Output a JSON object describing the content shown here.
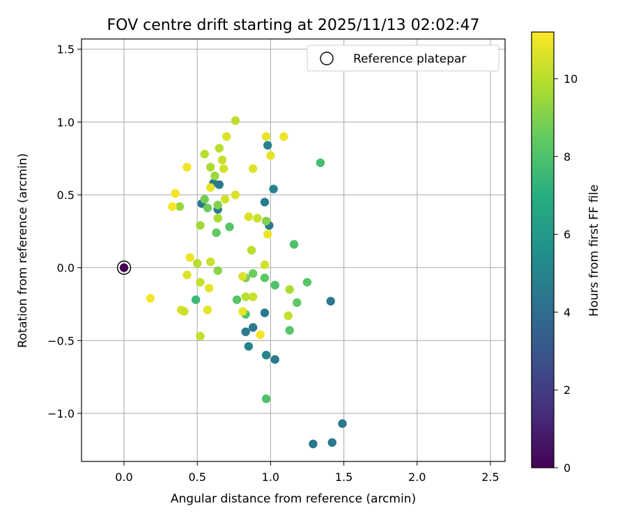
{
  "chart_data": {
    "type": "scatter",
    "title": "FOV centre drift starting at 2025/11/13 02:02:47",
    "xlabel": "Angular distance from reference (arcmin)",
    "ylabel": "Rotation from reference (arcmin)",
    "xlim": [
      -0.29,
      2.6
    ],
    "ylim": [
      -1.33,
      1.57
    ],
    "xticks": [
      0.0,
      0.5,
      1.0,
      1.5,
      2.0,
      2.5
    ],
    "xtick_labels": [
      "0.0",
      "0.5",
      "1.0",
      "1.5",
      "2.0",
      "2.5"
    ],
    "yticks": [
      -1.0,
      -0.5,
      0.0,
      0.5,
      1.0,
      1.5
    ],
    "ytick_labels": [
      "−1.0",
      "−0.5",
      "0.0",
      "0.5",
      "1.0",
      "1.5"
    ],
    "grid": true,
    "legend": {
      "label": "Reference platepar",
      "location": "upper right"
    },
    "colorbar": {
      "label": "Hours from first FF file",
      "range": [
        0,
        11.2
      ],
      "ticks": [
        0,
        2,
        4,
        6,
        8,
        10
      ],
      "tick_labels": [
        "0",
        "2",
        "4",
        "6",
        "8",
        "10"
      ],
      "colormap": "viridis"
    },
    "reference_point": {
      "x": 0.0,
      "y": 0.0
    },
    "points": [
      {
        "x": 0.0,
        "y": 0.0,
        "c": 0.0
      },
      {
        "x": 1.29,
        "y": -1.21,
        "c": 4.5
      },
      {
        "x": 1.42,
        "y": -1.2,
        "c": 4.5
      },
      {
        "x": 1.49,
        "y": -1.07,
        "c": 4.5
      },
      {
        "x": 1.41,
        "y": -0.23,
        "c": 4.5
      },
      {
        "x": 1.03,
        "y": -0.63,
        "c": 4.5
      },
      {
        "x": 0.97,
        "y": -0.6,
        "c": 5.0
      },
      {
        "x": 0.85,
        "y": -0.54,
        "c": 5.0
      },
      {
        "x": 0.83,
        "y": -0.44,
        "c": 4.5
      },
      {
        "x": 0.88,
        "y": -0.41,
        "c": 4.5
      },
      {
        "x": 0.96,
        "y": -0.31,
        "c": 4.5
      },
      {
        "x": 0.98,
        "y": 0.84,
        "c": 5.0
      },
      {
        "x": 1.02,
        "y": 0.54,
        "c": 5.0
      },
      {
        "x": 0.96,
        "y": 0.45,
        "c": 4.5
      },
      {
        "x": 0.99,
        "y": 0.29,
        "c": 4.5
      },
      {
        "x": 0.53,
        "y": 0.44,
        "c": 4.5
      },
      {
        "x": 0.64,
        "y": 0.4,
        "c": 4.5
      },
      {
        "x": 0.65,
        "y": 0.57,
        "c": 4.5
      },
      {
        "x": 0.61,
        "y": 0.58,
        "c": 4.5
      },
      {
        "x": 0.49,
        "y": -0.22,
        "c": 7.5
      },
      {
        "x": 0.97,
        "y": -0.9,
        "c": 8.0
      },
      {
        "x": 1.34,
        "y": 0.72,
        "c": 7.8
      },
      {
        "x": 1.16,
        "y": 0.16,
        "c": 8.0
      },
      {
        "x": 1.25,
        "y": -0.1,
        "c": 8.2
      },
      {
        "x": 1.18,
        "y": -0.24,
        "c": 8.4
      },
      {
        "x": 1.13,
        "y": -0.43,
        "c": 8.2
      },
      {
        "x": 1.03,
        "y": -0.12,
        "c": 8.0
      },
      {
        "x": 0.96,
        "y": -0.07,
        "c": 8.3
      },
      {
        "x": 0.88,
        "y": -0.04,
        "c": 8.6
      },
      {
        "x": 0.83,
        "y": -0.07,
        "c": 8.8
      },
      {
        "x": 0.77,
        "y": -0.22,
        "c": 8.2
      },
      {
        "x": 0.83,
        "y": -0.32,
        "c": 8.0
      },
      {
        "x": 0.72,
        "y": 0.28,
        "c": 8.2
      },
      {
        "x": 0.63,
        "y": 0.24,
        "c": 8.4
      },
      {
        "x": 0.57,
        "y": 0.41,
        "c": 8.6
      },
      {
        "x": 0.55,
        "y": 0.47,
        "c": 8.8
      },
      {
        "x": 0.64,
        "y": 0.43,
        "c": 9.0
      },
      {
        "x": 0.97,
        "y": 0.32,
        "c": 9.0
      },
      {
        "x": 0.64,
        "y": -0.02,
        "c": 9.2
      },
      {
        "x": 0.38,
        "y": 0.42,
        "c": 9.4
      },
      {
        "x": 0.52,
        "y": 0.29,
        "c": 9.6
      },
      {
        "x": 0.64,
        "y": 0.34,
        "c": 9.8
      },
      {
        "x": 0.62,
        "y": 0.63,
        "c": 9.5
      },
      {
        "x": 0.59,
        "y": 0.69,
        "c": 9.8
      },
      {
        "x": 0.55,
        "y": 0.78,
        "c": 10.0
      },
      {
        "x": 0.65,
        "y": 0.82,
        "c": 10.0
      },
      {
        "x": 0.67,
        "y": 0.74,
        "c": 10.2
      },
      {
        "x": 0.68,
        "y": 0.68,
        "c": 10.4
      },
      {
        "x": 0.76,
        "y": 1.01,
        "c": 10.1
      },
      {
        "x": 0.7,
        "y": 0.9,
        "c": 10.6
      },
      {
        "x": 0.97,
        "y": 0.9,
        "c": 10.8
      },
      {
        "x": 1.09,
        "y": 0.9,
        "c": 10.9
      },
      {
        "x": 1.0,
        "y": 0.77,
        "c": 10.8
      },
      {
        "x": 0.88,
        "y": 0.68,
        "c": 10.6
      },
      {
        "x": 0.69,
        "y": 0.47,
        "c": 10.4
      },
      {
        "x": 0.76,
        "y": 0.5,
        "c": 10.6
      },
      {
        "x": 0.85,
        "y": 0.35,
        "c": 10.6
      },
      {
        "x": 0.91,
        "y": 0.34,
        "c": 10.3
      },
      {
        "x": 0.87,
        "y": 0.12,
        "c": 10.0
      },
      {
        "x": 0.96,
        "y": 0.02,
        "c": 10.4
      },
      {
        "x": 0.98,
        "y": 0.23,
        "c": 10.9
      },
      {
        "x": 0.59,
        "y": 0.55,
        "c": 10.8
      },
      {
        "x": 0.43,
        "y": 0.69,
        "c": 11.0
      },
      {
        "x": 0.35,
        "y": 0.51,
        "c": 11.0
      },
      {
        "x": 0.33,
        "y": 0.42,
        "c": 11.1
      },
      {
        "x": 0.5,
        "y": 0.03,
        "c": 10.0
      },
      {
        "x": 0.59,
        "y": 0.04,
        "c": 10.3
      },
      {
        "x": 0.45,
        "y": 0.07,
        "c": 10.9
      },
      {
        "x": 0.43,
        "y": -0.05,
        "c": 10.6
      },
      {
        "x": 0.52,
        "y": -0.1,
        "c": 10.2
      },
      {
        "x": 0.58,
        "y": -0.14,
        "c": 10.8
      },
      {
        "x": 0.18,
        "y": -0.21,
        "c": 11.0
      },
      {
        "x": 0.39,
        "y": -0.29,
        "c": 10.5
      },
      {
        "x": 0.41,
        "y": -0.3,
        "c": 10.3
      },
      {
        "x": 0.57,
        "y": -0.29,
        "c": 10.8
      },
      {
        "x": 0.52,
        "y": -0.47,
        "c": 10.2
      },
      {
        "x": 0.81,
        "y": -0.06,
        "c": 10.6
      },
      {
        "x": 0.88,
        "y": -0.2,
        "c": 10.3
      },
      {
        "x": 0.83,
        "y": -0.2,
        "c": 10.0
      },
      {
        "x": 0.81,
        "y": -0.3,
        "c": 10.8
      },
      {
        "x": 0.93,
        "y": -0.46,
        "c": 11.0
      },
      {
        "x": 1.12,
        "y": -0.33,
        "c": 10.2
      },
      {
        "x": 1.13,
        "y": -0.15,
        "c": 9.8
      }
    ]
  }
}
